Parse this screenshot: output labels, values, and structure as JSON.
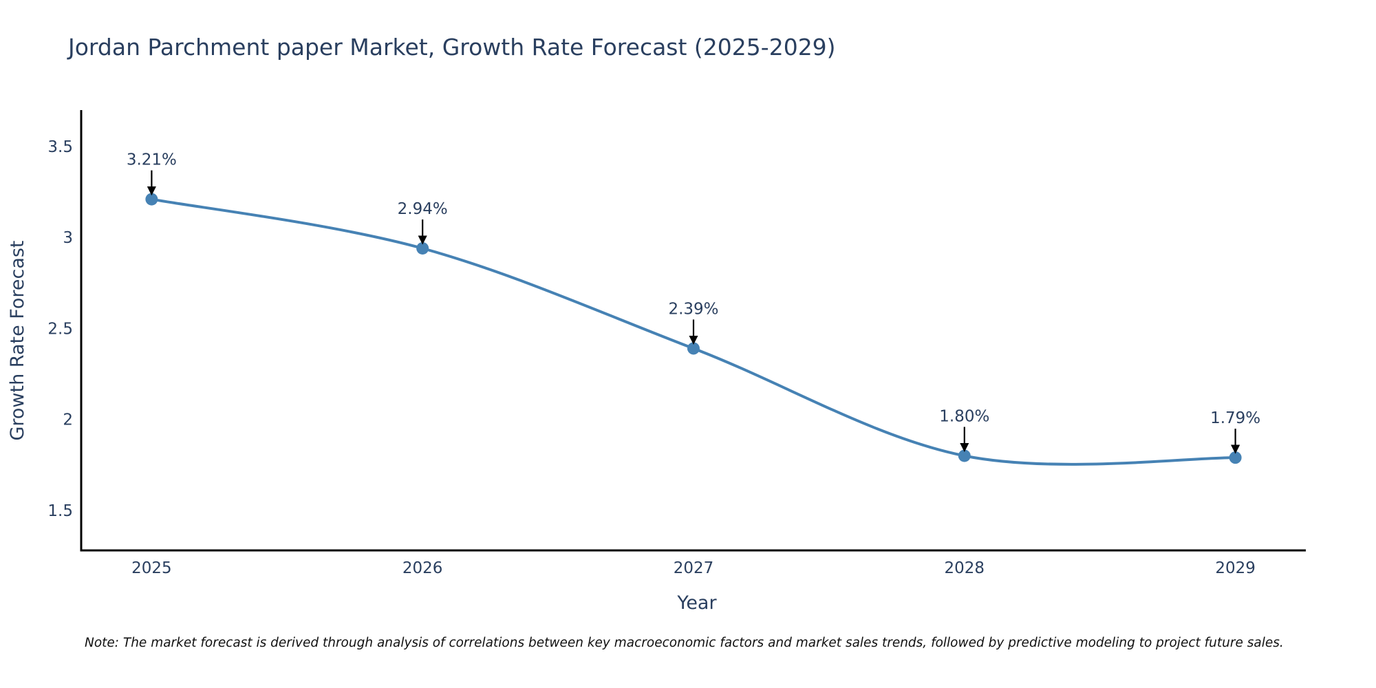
{
  "chart_data": {
    "type": "line",
    "title": "Jordan Parchment paper Market, Growth Rate Forecast (2025-2029)",
    "xlabel": "Year",
    "ylabel": "Growth Rate Forecast",
    "categories": [
      "2025",
      "2026",
      "2027",
      "2028",
      "2029"
    ],
    "x": [
      2025,
      2026,
      2027,
      2028,
      2029
    ],
    "series": [
      {
        "name": "Growth Rate Forecast",
        "values": [
          3.21,
          2.94,
          2.39,
          1.8,
          1.79
        ],
        "labels": [
          "3.21%",
          "2.94%",
          "2.39%",
          "1.80%",
          "1.79%"
        ],
        "color": "#4682b4",
        "line_shape": "spline",
        "markers": true
      }
    ],
    "x_ticks": [
      "2025",
      "2026",
      "2027",
      "2028",
      "2029"
    ],
    "y_ticks": [
      {
        "value": 1.5,
        "label": "1.5"
      },
      {
        "value": 2,
        "label": "2"
      },
      {
        "value": 2.5,
        "label": "2.5"
      },
      {
        "value": 3,
        "label": "3"
      },
      {
        "value": 3.5,
        "label": "3.5"
      }
    ],
    "ylim": [
      1.28,
      3.7
    ],
    "xlim": [
      2024.74,
      2029.26
    ],
    "grid": false,
    "legend": "none",
    "annotation_arrow_color": "#000000",
    "axis_line_color": "#000000",
    "text_color": "#2a3f5f"
  },
  "footer": {
    "note": "Note: The market forecast is derived through analysis of correlations between key macroeconomic factors and market sales trends, followed by predictive modeling to project future sales."
  }
}
